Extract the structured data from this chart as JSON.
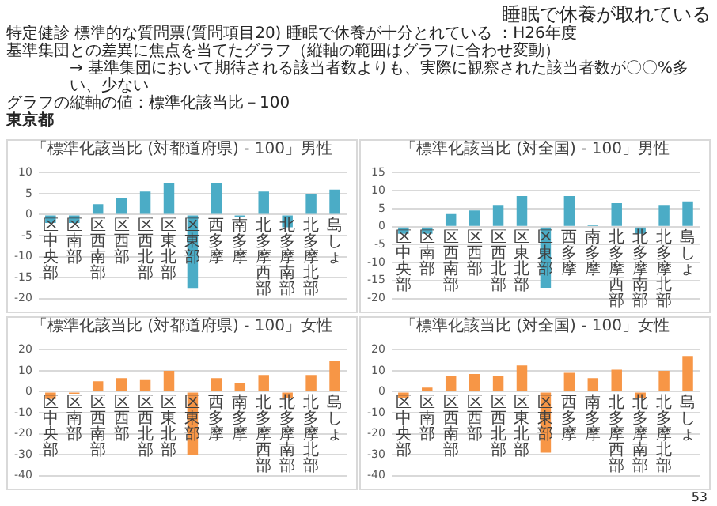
{
  "chart_data": [
    {
      "type": "other",
      "title": "睡眠で休養が取れている",
      "annotations": [
        "特定健診 標準的な質問票(質問項目20) 睡眠で休養が十分とれている ：H26年度",
        "基準集団との差異に焦点を当てたグラフ（縦軸の範囲はグラフに合わせ変動）",
        "→ 基準集団において期待される該当者数よりも、実際に観察された該当者数が〇〇%多い、少ない",
        "グラフの縦軸の値：標準化該当比－100",
        "東京都",
        "53"
      ]
    },
    {
      "type": "bar",
      "title": "「標準化該当比 (対都道府県) - 100」男性",
      "categories": [
        "区中央部",
        "区南部",
        "区西南部",
        "区西部",
        "区西北部",
        "区東北部",
        "区東部",
        "西多摩",
        "南多摩",
        "北多摩西部",
        "北多摩南部",
        "北多摩北部",
        "島しょ"
      ],
      "series": [
        {
          "color": "#4bacc6",
          "values": [
            -2,
            -2,
            2.5,
            4,
            5.5,
            7.5,
            -17.5,
            7.5,
            -0.5,
            5.5,
            -3,
            5,
            6
          ]
        }
      ],
      "ylim": [
        -20,
        10
      ],
      "yticks": [
        -20,
        -15,
        -10,
        -5,
        0,
        5,
        10
      ],
      "grid": "y"
    },
    {
      "type": "bar",
      "title": "「標準化該当比 (対全国) - 100」男性",
      "categories": [
        "区中央部",
        "区南部",
        "区西南部",
        "区西部",
        "区西北部",
        "区東北部",
        "区東部",
        "西多摩",
        "南多摩",
        "北多摩西部",
        "北多摩南部",
        "北多摩北部",
        "島しょ"
      ],
      "series": [
        {
          "color": "#4bacc6",
          "values": [
            -2,
            -2,
            3.5,
            4.5,
            6,
            8.5,
            -17,
            8.5,
            0.5,
            6.5,
            -2,
            6,
            7
          ]
        }
      ],
      "ylim": [
        -20,
        15
      ],
      "yticks": [
        -20,
        -15,
        -10,
        -5,
        0,
        5,
        10,
        15
      ],
      "grid": "y"
    },
    {
      "type": "bar",
      "title": "「標準化該当比 (対都道府県) - 100」女性",
      "categories": [
        "区中央部",
        "区南部",
        "区西南部",
        "区西部",
        "区西北部",
        "区東北部",
        "区東部",
        "西多摩",
        "南多摩",
        "北多摩西部",
        "北多摩南部",
        "北多摩北部",
        "島しょ"
      ],
      "series": [
        {
          "color": "#f79646",
          "values": [
            -3.5,
            -1,
            5,
            6.5,
            5.5,
            10,
            -30,
            6.5,
            4,
            8,
            -3,
            8,
            14.5
          ]
        }
      ],
      "ylim": [
        -40,
        20
      ],
      "yticks": [
        -40,
        -30,
        -20,
        -10,
        0,
        10,
        20
      ],
      "grid": "y"
    },
    {
      "type": "bar",
      "title": "「標準化該当比 (対全国) - 100」女性",
      "categories": [
        "区中央部",
        "区南部",
        "区西南部",
        "区西部",
        "区西北部",
        "区東北部",
        "区東部",
        "西多摩",
        "南多摩",
        "北多摩西部",
        "北多摩南部",
        "北多摩北部",
        "島しょ"
      ],
      "series": [
        {
          "color": "#f79646",
          "values": [
            -3,
            2,
            7.5,
            8.5,
            7.5,
            12.5,
            -29,
            9,
            6.5,
            10.5,
            -3,
            10,
            17
          ]
        }
      ],
      "ylim": [
        -40,
        20
      ],
      "yticks": [
        -40,
        -30,
        -20,
        -10,
        0,
        10,
        20
      ],
      "grid": "y"
    }
  ]
}
